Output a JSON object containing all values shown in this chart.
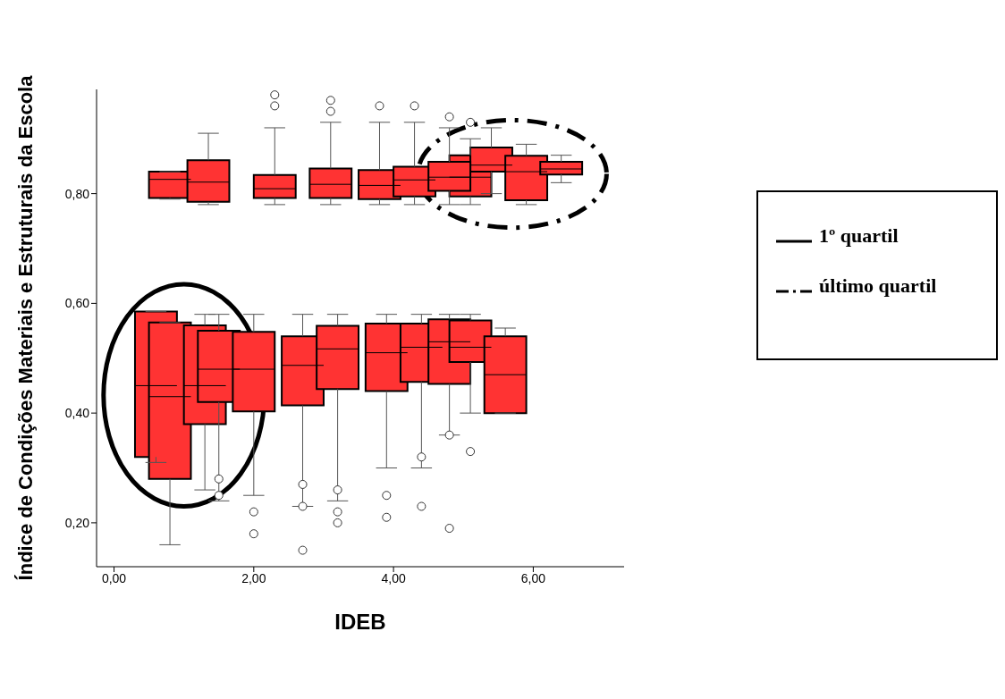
{
  "chart_data": {
    "type": "box",
    "xlabel": "IDEB",
    "ylabel": "Índice de Condições Materiais e Estruturais da Escola",
    "xlim": [
      -0.25,
      7.3
    ],
    "xticks": [
      {
        "value": 0,
        "label": "0,00"
      },
      {
        "value": 2,
        "label": "2,00"
      },
      {
        "value": 4,
        "label": "4,00"
      },
      {
        "value": 6,
        "label": "6,00"
      }
    ],
    "ylim": [
      0.12,
      0.99
    ],
    "yticks": [
      {
        "value": 0.2,
        "label": "0,20"
      },
      {
        "value": 0.4,
        "label": "0,40"
      },
      {
        "value": 0.6,
        "label": "0,60"
      },
      {
        "value": 0.8,
        "label": "0,80"
      }
    ],
    "legend": "right",
    "marker": "circle",
    "series": [
      {
        "name": "1º quartil",
        "color": "#ff3333",
        "line_style": "solid",
        "x": [
          0.6,
          0.8,
          1.3,
          1.5
        ],
        "boxes": [
          {
            "low": 0.31,
            "q1": 0.32,
            "median": 0.45,
            "q3": 0.585,
            "high": 0.585
          },
          {
            "low": 0.16,
            "q1": 0.28,
            "median": 0.43,
            "q3": 0.565,
            "high": 0.565
          },
          {
            "low": 0.26,
            "q1": 0.38,
            "median": 0.45,
            "q3": 0.56,
            "high": 0.58
          },
          {
            "low": 0.24,
            "q1": 0.42,
            "median": 0.48,
            "q3": 0.55,
            "high": 0.58,
            "outliers": [
              0.25,
              0.28
            ]
          }
        ]
      },
      {
        "name": "último quartil",
        "color": "#ff3333",
        "line_style": "dashed",
        "x": [
          5.1,
          5.4,
          5.9,
          6.4
        ],
        "boxes": [
          {
            "low": 0.78,
            "q1": 0.795,
            "median": 0.83,
            "q3": 0.87,
            "high": 0.9,
            "outliers": [
              0.93
            ]
          },
          {
            "low": 0.8,
            "q1": 0.84,
            "median": 0.852,
            "q3": 0.884,
            "high": 0.92
          },
          {
            "low": 0.78,
            "q1": 0.788,
            "median": 0.84,
            "q3": 0.869,
            "high": 0.89
          },
          {
            "low": 0.82,
            "q1": 0.835,
            "median": 0.845,
            "q3": 0.858,
            "high": 0.87
          }
        ]
      },
      {
        "color": "#ff3333",
        "x": [
          2.0,
          2.7,
          3.2,
          3.9,
          4.4,
          4.8,
          5.1,
          5.6,
          0.8,
          1.35,
          2.3,
          3.1,
          3.8,
          4.3,
          4.8
        ],
        "boxes": [
          {
            "low": 0.25,
            "q1": 0.403,
            "median": 0.48,
            "q3": 0.548,
            "high": 0.58,
            "outliers": [
              0.18,
              0.22
            ]
          },
          {
            "low": 0.23,
            "q1": 0.414,
            "median": 0.487,
            "q3": 0.54,
            "high": 0.58,
            "outliers": [
              0.15,
              0.23,
              0.27
            ]
          },
          {
            "low": 0.24,
            "q1": 0.444,
            "median": 0.517,
            "q3": 0.559,
            "high": 0.58,
            "outliers": [
              0.2,
              0.22,
              0.26
            ]
          },
          {
            "low": 0.3,
            "q1": 0.44,
            "median": 0.51,
            "q3": 0.563,
            "high": 0.58,
            "outliers": [
              0.21,
              0.25
            ]
          },
          {
            "low": 0.3,
            "q1": 0.457,
            "median": 0.52,
            "q3": 0.563,
            "high": 0.58,
            "outliers": [
              0.23,
              0.32
            ]
          },
          {
            "low": 0.36,
            "q1": 0.453,
            "median": 0.53,
            "q3": 0.571,
            "high": 0.58,
            "outliers": [
              0.19,
              0.36
            ]
          },
          {
            "low": 0.4,
            "q1": 0.493,
            "median": 0.52,
            "q3": 0.569,
            "high": 0.58,
            "outliers": [
              0.33
            ]
          },
          {
            "low": 0.4,
            "q1": 0.4,
            "median": 0.47,
            "q3": 0.54,
            "high": 0.555
          },
          {
            "low": 0.79,
            "q1": 0.792,
            "median": 0.826,
            "q3": 0.84,
            "high": 0.84
          },
          {
            "low": 0.78,
            "q1": 0.785,
            "median": 0.821,
            "q3": 0.861,
            "high": 0.91
          },
          {
            "low": 0.78,
            "q1": 0.792,
            "median": 0.809,
            "q3": 0.834,
            "high": 0.92,
            "outliers": [
              0.96,
              0.98
            ]
          },
          {
            "low": 0.78,
            "q1": 0.792,
            "median": 0.817,
            "q3": 0.846,
            "high": 0.93,
            "outliers": [
              0.95,
              0.97
            ]
          },
          {
            "low": 0.78,
            "q1": 0.79,
            "median": 0.815,
            "q3": 0.843,
            "high": 0.93,
            "outliers": [
              0.96
            ]
          },
          {
            "low": 0.78,
            "q1": 0.795,
            "median": 0.825,
            "q3": 0.849,
            "high": 0.93,
            "outliers": [
              0.96
            ]
          },
          {
            "low": 0.78,
            "q1": 0.805,
            "median": 0.83,
            "q3": 0.858,
            "high": 0.92,
            "outliers": [
              0.94
            ]
          }
        ]
      }
    ]
  }
}
